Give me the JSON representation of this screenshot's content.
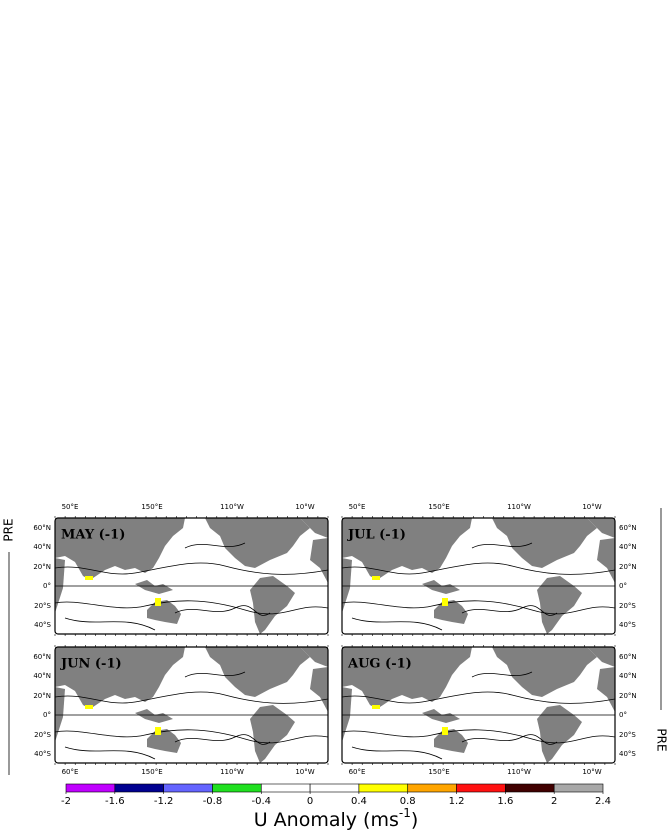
{
  "panels": [
    {
      "title": "MAY (-1)"
    },
    {
      "title": "JUL (-1)"
    },
    {
      "title": "JUN (-1)"
    },
    {
      "title": "AUG (-1)"
    }
  ],
  "top_lon_labels": [
    "50°E",
    "150°E",
    "110°W",
    "10°W"
  ],
  "bottom_lon_labels": [
    "60°E",
    "150°E",
    "110°W",
    "10°W"
  ],
  "lat_labels": [
    "60°N",
    "40°N",
    "20°N",
    "0°",
    "20°S",
    "40°S"
  ],
  "side_label": "PRE",
  "colorbar": {
    "ticks": [
      -2,
      -1.6,
      -1.2,
      -0.8,
      -0.4,
      0,
      0.4,
      0.8,
      1.2,
      1.6,
      2,
      2.4
    ],
    "colors": [
      "#c000ff",
      "#000090",
      "#6464ff",
      "#20e020",
      "#ffffff",
      "#ffffff",
      "#ffff00",
      "#ffa500",
      "#ff1010",
      "#400000",
      "#a8a8a8"
    ],
    "label": "U Anomaly (ms",
    "label_exponent": "-1",
    "label_close": ")"
  }
}
